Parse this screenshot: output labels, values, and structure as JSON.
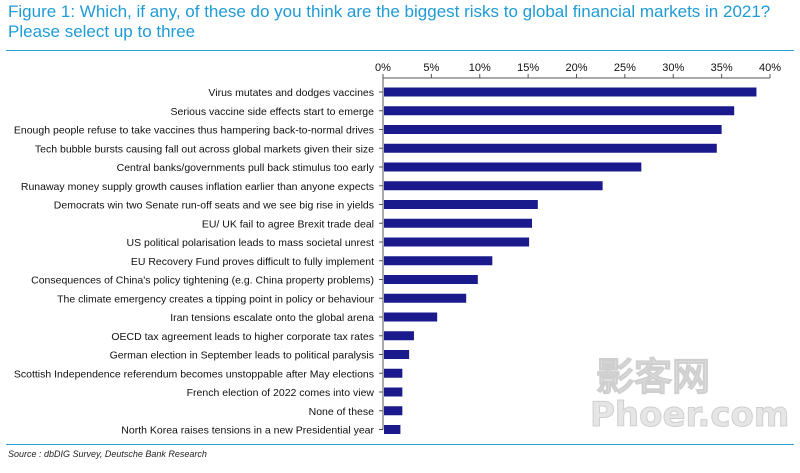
{
  "title": "Figure 1: Which, if any, of these do you think are the biggest risks to global financial markets in 2021? Please select up to three",
  "source": "Source : dbDIG Survey, Deutsche Bank Research",
  "watermark": {
    "line1": "影客网",
    "line2": "Phoer.com"
  },
  "colors": {
    "bar": "#1a1a8c",
    "title": "#1f9bd6",
    "rule": "#2aa0d8",
    "watermark": "#e3e3e3"
  },
  "chart_data": {
    "type": "bar",
    "orientation": "horizontal",
    "xaxis_position": "top",
    "xlim": [
      0,
      40
    ],
    "ticks": [
      "0%",
      "5%",
      "10%",
      "15%",
      "20%",
      "25%",
      "30%",
      "35%",
      "40%"
    ],
    "grid": false,
    "categories": [
      "Virus mutates and dodges vaccines",
      "Serious vaccine side effects start to emerge",
      "Enough people refuse to take vaccines thus hampering back-to-normal drives",
      "Tech bubble bursts causing fall out across global markets given their size",
      "Central banks/governments pull back stimulus too early",
      "Runaway money supply growth causes inflation earlier than anyone expects",
      "Democrats win two Senate run-off seats and we see big rise in yields",
      "EU/ UK fail to agree Brexit trade deal",
      "US political polarisation leads to mass societal unrest",
      "EU Recovery Fund proves difficult to fully implement",
      "Consequences of China's policy tightening (e.g. China property problems)",
      "The climate emergency creates a tipping point in policy or behaviour",
      "Iran tensions escalate onto the global arena",
      "OECD tax agreement leads to higher corporate tax rates",
      "German election in September leads to political paralysis",
      "Scottish Independence referendum becomes unstoppable after May elections",
      "French election of 2022 comes into view",
      "None of these",
      "North Korea raises tensions in a new Presidential year"
    ],
    "values": [
      38.6,
      36.3,
      35.0,
      34.5,
      26.7,
      22.7,
      16.0,
      15.4,
      15.1,
      11.3,
      9.8,
      8.6,
      5.6,
      3.2,
      2.7,
      2.0,
      2.0,
      2.0,
      1.8
    ]
  }
}
